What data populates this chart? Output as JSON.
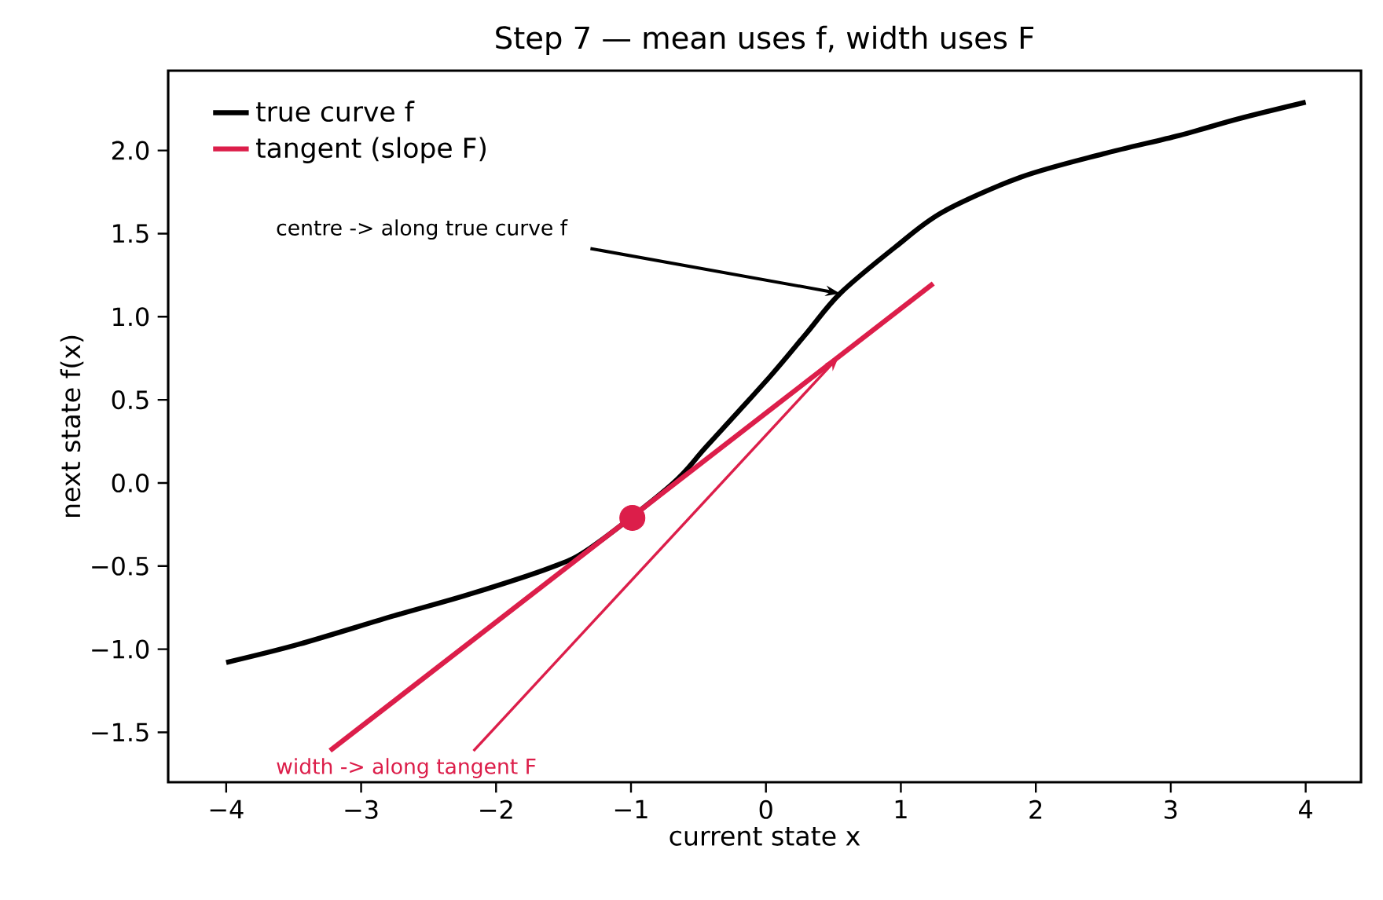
{
  "chart_data": {
    "type": "line",
    "title": "Step 7 — mean uses f, width uses F",
    "xlabel": "current state x",
    "ylabel": "next state f(x)",
    "xlim": [
      -4.43,
      4.41
    ],
    "ylim": [
      -1.8,
      2.48
    ],
    "xticks": [
      {
        "value": -4,
        "label": "−4"
      },
      {
        "value": -3,
        "label": "−3"
      },
      {
        "value": -2,
        "label": "−2"
      },
      {
        "value": -1,
        "label": "−1"
      },
      0,
      1,
      2,
      3,
      4
    ],
    "yticks": [
      {
        "value": -1.5,
        "label": "−1.5"
      },
      {
        "value": -1.0,
        "label": "−1.0"
      },
      {
        "value": -0.5,
        "label": "−0.5"
      },
      {
        "value": 0.0,
        "label": "0.0"
      },
      0.5,
      {
        "value": 1.0,
        "label": "1.0"
      },
      1.5,
      {
        "value": 2.0,
        "label": "2.0"
      }
    ],
    "grid": false,
    "legend": "top left",
    "series": [
      {
        "name": "true curve f",
        "color": "#000000",
        "x": [
          -4,
          -3.46,
          -2.76,
          -2.2,
          -1.6,
          -1.3,
          -0.99,
          -0.7,
          -0.44,
          0.03,
          0.3,
          0.55,
          0.96,
          1.31,
          1.89,
          2.5,
          3.06,
          3.5,
          4
        ],
        "values": [
          -1.08,
          -0.97,
          -0.8,
          -0.67,
          -0.51,
          -0.39,
          null,
          -0.01,
          0.22,
          0.64,
          0.9,
          1.14,
          1.42,
          1.63,
          1.84,
          1.98,
          2.09,
          2.19,
          2.29
        ]
      },
      {
        "name": "tangent (slope F)",
        "color": "#dc1e4a",
        "x": [
          -3.23,
          1.24
        ],
        "values": [
          -1.61,
          1.2
        ]
      },
      {
        "type": "scatter",
        "color": "#dc1e4a",
        "marker": "circle",
        "x": [
          -0.99
        ],
        "values": [
          -0.21
        ]
      }
    ],
    "annotations": [
      {
        "text": "centre -> along true curve f",
        "x": 0.55,
        "y": 1.14
      },
      {
        "text": "width -> along tangent F",
        "x": 0.54,
        "y": 0.76
      }
    ]
  }
}
